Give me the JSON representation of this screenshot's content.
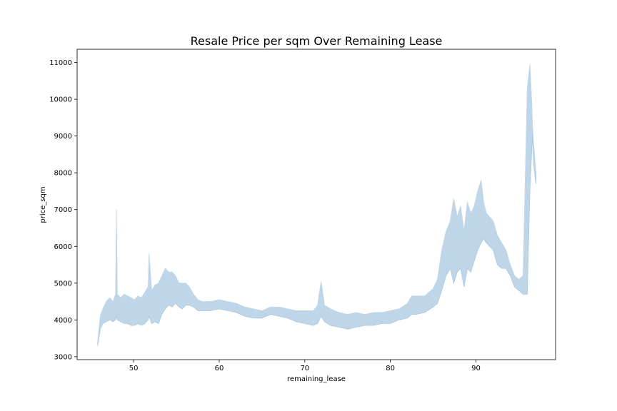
{
  "chart_data": {
    "type": "area",
    "title": "Resale Price per sqm Over Remaining Lease",
    "xlabel": "remaining_lease",
    "ylabel": "price_sqm",
    "xlim": [
      43.4,
      99.3
    ],
    "ylim": [
      2920,
      11360
    ],
    "xticks": [
      50,
      60,
      70,
      80,
      90
    ],
    "yticks": [
      3000,
      4000,
      5000,
      6000,
      7000,
      8000,
      9000,
      10000,
      11000
    ],
    "grid": false,
    "legend": "none",
    "color": "#a9c8e0",
    "series": [
      {
        "x": [
          45.8,
          46.1,
          46.4,
          46.8,
          47.2,
          47.6,
          47.9,
          48.0,
          48.1,
          48.5,
          48.9,
          49.3,
          49.7,
          50.1,
          50.5,
          50.9,
          51.3,
          51.7,
          51.8,
          52.1,
          52.5,
          52.9,
          53.3,
          53.7,
          54.1,
          54.5,
          54.9,
          55.3,
          55.7,
          56.1,
          56.5,
          57.0,
          57.5,
          58.0,
          59.0,
          60.0,
          61.0,
          62.0,
          63.0,
          64.0,
          65.0,
          66.0,
          67.0,
          68.0,
          69.0,
          70.0,
          71.0,
          71.5,
          71.9,
          72.3,
          73.0,
          74.0,
          75.0,
          76.0,
          77.0,
          78.0,
          79.0,
          80.0,
          81.0,
          82.0,
          82.5,
          83.0,
          84.0,
          85.0,
          85.5,
          86.0,
          86.5,
          87.0,
          87.4,
          87.8,
          88.2,
          88.6,
          89.0,
          89.4,
          89.8,
          90.2,
          90.6,
          90.9,
          91.2,
          91.6,
          92.0,
          92.5,
          93.0,
          93.5,
          94.0,
          94.5,
          95.0,
          95.5,
          96.0,
          96.3,
          96.5,
          96.6,
          96.7,
          96.8,
          97.0
        ],
        "lower": [
          3300,
          3750,
          3900,
          3950,
          4000,
          3950,
          4000,
          4100,
          4000,
          3950,
          3900,
          3900,
          3850,
          3850,
          3900,
          3850,
          3900,
          4000,
          4100,
          3900,
          3950,
          3900,
          4150,
          4300,
          4400,
          4350,
          4450,
          4350,
          4300,
          4400,
          4400,
          4350,
          4250,
          4250,
          4250,
          4300,
          4250,
          4200,
          4100,
          4050,
          4050,
          4150,
          4100,
          4050,
          3950,
          3900,
          3850,
          3900,
          4100,
          3950,
          3850,
          3800,
          3750,
          3800,
          3850,
          3850,
          3900,
          3900,
          4000,
          4050,
          4150,
          4150,
          4200,
          4350,
          4450,
          4800,
          5200,
          5400,
          5000,
          5300,
          5400,
          4900,
          5400,
          5300,
          5600,
          5900,
          6100,
          6200,
          6100,
          6000,
          5900,
          5500,
          5400,
          5400,
          5200,
          4900,
          4800,
          4700,
          4700,
          7500,
          8500,
          9000,
          8400,
          8100,
          7700
        ],
        "upper": [
          3400,
          4100,
          4300,
          4500,
          4600,
          4500,
          4700,
          7000,
          4700,
          4600,
          4700,
          4650,
          4600,
          4550,
          4650,
          4600,
          4750,
          4900,
          5800,
          4800,
          4950,
          5000,
          5200,
          5400,
          5300,
          5300,
          5200,
          5000,
          5000,
          5000,
          4900,
          4700,
          4550,
          4500,
          4500,
          4550,
          4500,
          4450,
          4350,
          4300,
          4250,
          4350,
          4350,
          4300,
          4250,
          4250,
          4250,
          4400,
          5050,
          4400,
          4300,
          4200,
          4150,
          4200,
          4150,
          4200,
          4200,
          4250,
          4300,
          4450,
          4650,
          4650,
          4650,
          4850,
          5100,
          5900,
          6400,
          6700,
          7300,
          6800,
          7100,
          6400,
          7200,
          6900,
          7100,
          7500,
          7800,
          7200,
          6900,
          6800,
          6700,
          6300,
          6100,
          5900,
          5500,
          5200,
          5100,
          5200,
          10300,
          10950,
          10000,
          9300,
          8900,
          8600,
          8000
        ]
      }
    ]
  }
}
